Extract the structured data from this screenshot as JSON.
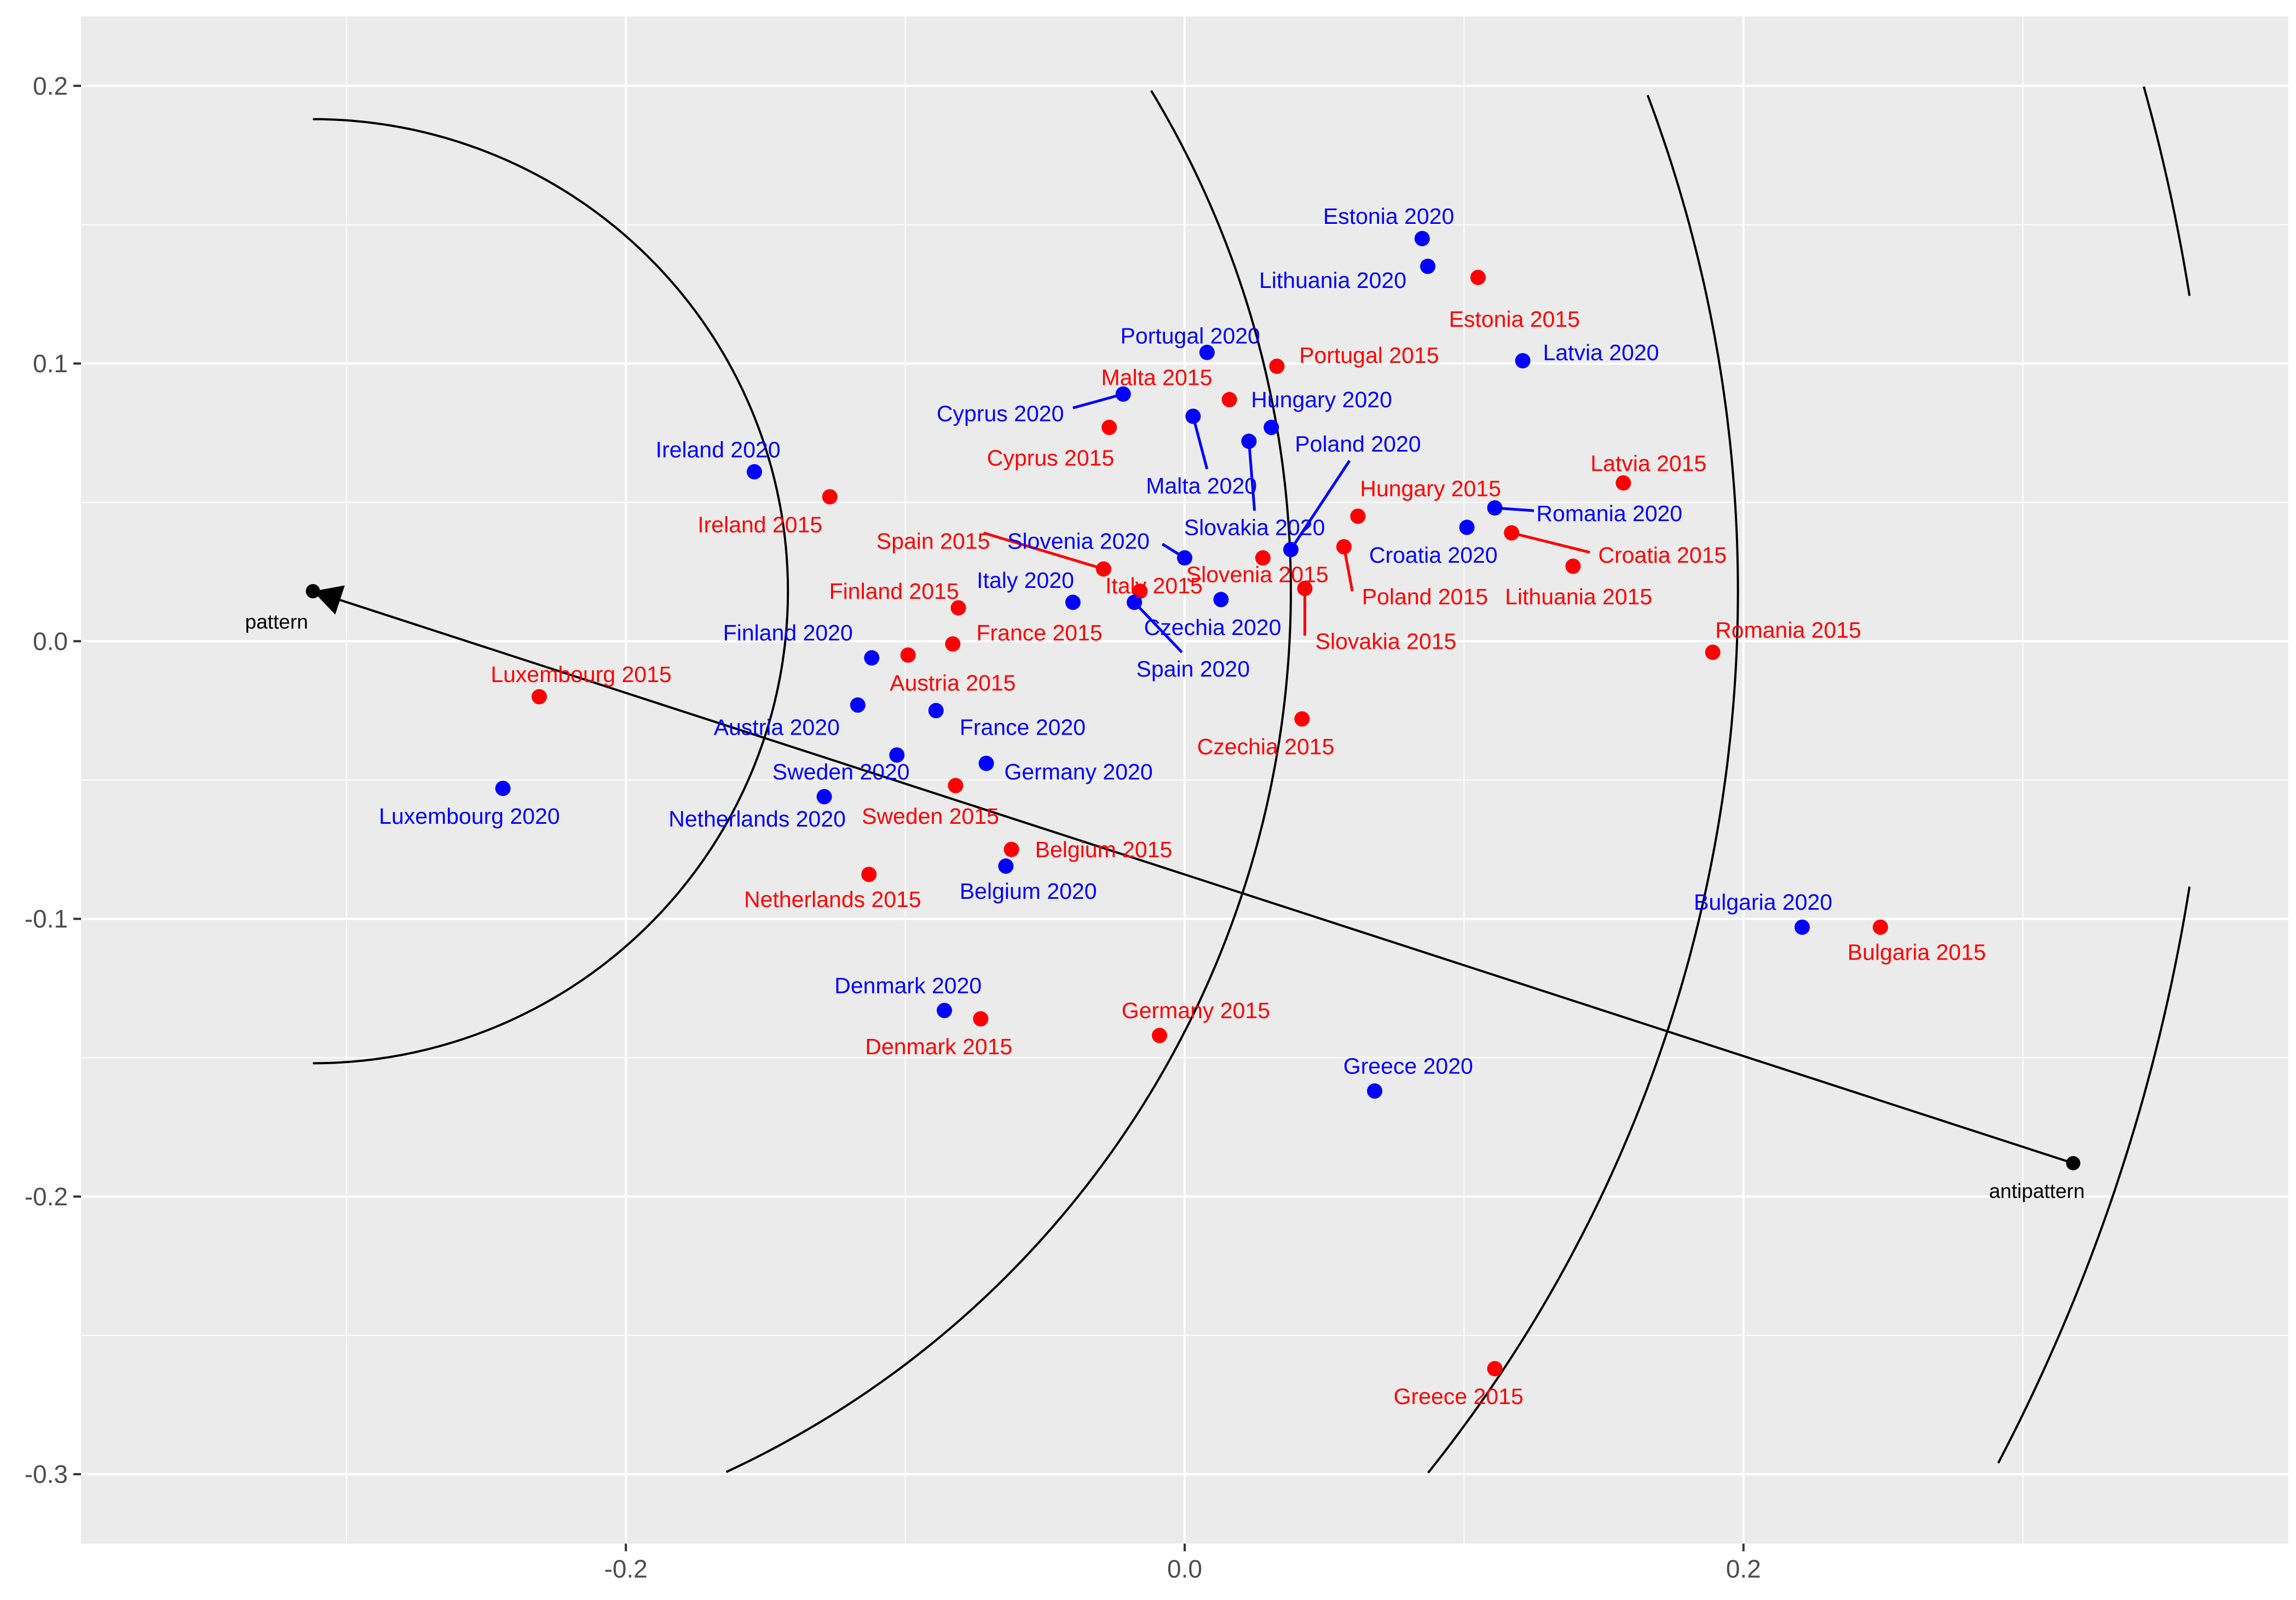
{
  "chart_data": {
    "type": "scatter",
    "title": "",
    "xlabel": "",
    "ylabel": "",
    "xlim": [
      -0.395,
      0.395
    ],
    "ylim": [
      -0.325,
      0.225
    ],
    "x_ticks": [
      -0.2,
      0.0,
      0.2
    ],
    "x_tick_labels": [
      "-0.2",
      "0.0",
      "0.2"
    ],
    "y_ticks": [
      -0.3,
      -0.2,
      -0.1,
      0.0,
      0.1,
      0.2
    ],
    "y_tick_labels": [
      "-0.3",
      "-0.2",
      "-0.1",
      "0.0",
      "0.1",
      "0.2"
    ],
    "grid": true,
    "legend": "none",
    "colors": {
      "panel_background": "#ebebeb",
      "grid_major": "#ffffff",
      "series_2015": "#ff0000",
      "series_2020": "#0000ff",
      "axis_elements": "#000000",
      "tick_text": "#4d4d4d"
    },
    "series": [
      {
        "name": "2015",
        "color": "#ff0000",
        "points": [
          {
            "label": "Estonia 2015",
            "x": 0.105,
            "y": 0.131,
            "lx": 0.118,
            "ly": 0.116
          },
          {
            "label": "Portugal 2015",
            "x": 0.033,
            "y": 0.099,
            "lx": 0.066,
            "ly": 0.103
          },
          {
            "label": "Malta 2015",
            "x": 0.016,
            "y": 0.087,
            "lx": -0.01,
            "ly": 0.095
          },
          {
            "label": "Cyprus 2015",
            "x": -0.027,
            "y": 0.077,
            "lx": -0.048,
            "ly": 0.066
          },
          {
            "label": "Ireland 2015",
            "x": -0.127,
            "y": 0.052,
            "lx": -0.152,
            "ly": 0.042
          },
          {
            "label": "Latvia 2015",
            "x": 0.157,
            "y": 0.057,
            "lx": 0.166,
            "ly": 0.064
          },
          {
            "label": "Hungary 2015",
            "x": 0.062,
            "y": 0.045,
            "lx": 0.088,
            "ly": 0.055
          },
          {
            "label": "Spain 2015",
            "x": -0.029,
            "y": 0.026,
            "lx": -0.09,
            "ly": 0.036,
            "line": [
              -0.072,
              0.039,
              -0.029,
              0.026
            ]
          },
          {
            "label": "Slovenia 2015",
            "x": 0.028,
            "y": 0.03,
            "lx": 0.026,
            "ly": 0.024
          },
          {
            "label": "Italy 2015",
            "x": -0.016,
            "y": 0.018,
            "lx": -0.011,
            "ly": 0.02
          },
          {
            "label": "Finland 2015",
            "x": -0.081,
            "y": 0.012,
            "lx": -0.104,
            "ly": 0.018
          },
          {
            "label": "Croatia 2015",
            "x": 0.117,
            "y": 0.039,
            "lx": 0.171,
            "ly": 0.031,
            "line": [
              0.117,
              0.039,
              0.145,
              0.032
            ]
          },
          {
            "label": "Lithuania 2015",
            "x": 0.139,
            "y": 0.027,
            "lx": 0.141,
            "ly": 0.016
          },
          {
            "label": "Poland 2015",
            "x": 0.057,
            "y": 0.034,
            "lx": 0.086,
            "ly": 0.016,
            "line": [
              0.057,
              0.034,
              0.06,
              0.018
            ]
          },
          {
            "label": "Slovakia 2015",
            "x": 0.043,
            "y": 0.019,
            "lx": 0.072,
            "ly": 0.0,
            "line": [
              0.043,
              0.019,
              0.043,
              0.002
            ]
          },
          {
            "label": "France 2015",
            "x": -0.083,
            "y": -0.001,
            "lx": -0.052,
            "ly": 0.003
          },
          {
            "label": "Romania 2015",
            "x": 0.189,
            "y": -0.004,
            "lx": 0.216,
            "ly": 0.004
          },
          {
            "label": "Austria 2015",
            "x": -0.099,
            "y": -0.005,
            "lx": -0.083,
            "ly": -0.015
          },
          {
            "label": "Luxembourg 2015",
            "x": -0.231,
            "y": -0.02,
            "lx": -0.216,
            "ly": -0.012
          },
          {
            "label": "Czechia 2015",
            "x": 0.042,
            "y": -0.028,
            "lx": 0.029,
            "ly": -0.038
          },
          {
            "label": "Sweden 2015",
            "x": -0.082,
            "y": -0.052,
            "lx": -0.091,
            "ly": -0.063
          },
          {
            "label": "Belgium 2015",
            "x": -0.062,
            "y": -0.075,
            "lx": -0.029,
            "ly": -0.075
          },
          {
            "label": "Netherlands 2015",
            "x": -0.113,
            "y": -0.084,
            "lx": -0.126,
            "ly": -0.093
          },
          {
            "label": "Bulgaria 2015",
            "x": 0.249,
            "y": -0.103,
            "lx": 0.262,
            "ly": -0.112
          },
          {
            "label": "Germany 2015",
            "x": -0.009,
            "y": -0.142,
            "lx": 0.004,
            "ly": -0.133
          },
          {
            "label": "Denmark 2015",
            "x": -0.073,
            "y": -0.136,
            "lx": -0.088,
            "ly": -0.146
          },
          {
            "label": "Greece 2015",
            "x": 0.111,
            "y": -0.262,
            "lx": 0.098,
            "ly": -0.272
          }
        ]
      },
      {
        "name": "2020",
        "color": "#0000ff",
        "points": [
          {
            "label": "Estonia 2020",
            "x": 0.085,
            "y": 0.145,
            "lx": 0.073,
            "ly": 0.153
          },
          {
            "label": "Lithuania 2020",
            "x": 0.087,
            "y": 0.135,
            "lx": 0.053,
            "ly": 0.13
          },
          {
            "label": "Portugal 2020",
            "x": 0.008,
            "y": 0.104,
            "lx": 0.002,
            "ly": 0.11
          },
          {
            "label": "Latvia 2020",
            "x": 0.121,
            "y": 0.101,
            "lx": 0.149,
            "ly": 0.104
          },
          {
            "label": "Cyprus 2020",
            "x": -0.022,
            "y": 0.089,
            "lx": -0.066,
            "ly": 0.082,
            "line": [
              -0.022,
              0.089,
              -0.04,
              0.084
            ]
          },
          {
            "label": "Hungary 2020",
            "x": 0.031,
            "y": 0.077,
            "lx": 0.049,
            "ly": 0.087
          },
          {
            "label": "Malta 2020",
            "x": 0.003,
            "y": 0.081,
            "lx": 0.006,
            "ly": 0.056,
            "line": [
              0.003,
              0.081,
              0.008,
              0.062
            ]
          },
          {
            "label": "Poland 2020",
            "x": 0.038,
            "y": 0.033,
            "lx": 0.062,
            "ly": 0.071,
            "line": [
              0.038,
              0.033,
              0.059,
              0.065
            ]
          },
          {
            "label": "Ireland 2020",
            "x": -0.154,
            "y": 0.061,
            "lx": -0.167,
            "ly": 0.069
          },
          {
            "label": "Slovakia 2020",
            "x": 0.023,
            "y": 0.072,
            "lx": 0.025,
            "ly": 0.041,
            "line": [
              0.023,
              0.072,
              0.025,
              0.047
            ]
          },
          {
            "label": "Romania 2020",
            "x": 0.111,
            "y": 0.048,
            "lx": 0.152,
            "ly": 0.046,
            "line": [
              0.111,
              0.048,
              0.125,
              0.047
            ]
          },
          {
            "label": "Croatia 2020",
            "x": 0.101,
            "y": 0.041,
            "lx": 0.089,
            "ly": 0.031
          },
          {
            "label": "Slovenia 2020",
            "x": 0.0,
            "y": 0.03,
            "lx": -0.038,
            "ly": 0.036,
            "line": [
              -0.008,
              0.035,
              0.0,
              0.03
            ]
          },
          {
            "label": "Italy 2020",
            "x": -0.04,
            "y": 0.014,
            "lx": -0.057,
            "ly": 0.022
          },
          {
            "label": "Czechia 2020",
            "x": 0.013,
            "y": 0.015,
            "lx": 0.01,
            "ly": 0.005
          },
          {
            "label": "Spain 2020",
            "x": -0.018,
            "y": 0.014,
            "lx": 0.003,
            "ly": -0.01,
            "line": [
              -0.018,
              0.014,
              -0.001,
              -0.004
            ]
          },
          {
            "label": "Finland 2020",
            "x": -0.112,
            "y": -0.006,
            "lx": -0.142,
            "ly": 0.003
          },
          {
            "label": "France 2020",
            "x": -0.089,
            "y": -0.025,
            "lx": -0.058,
            "ly": -0.031
          },
          {
            "label": "Austria 2020",
            "x": -0.117,
            "y": -0.023,
            "lx": -0.146,
            "ly": -0.031
          },
          {
            "label": "Sweden 2020",
            "x": -0.103,
            "y": -0.041,
            "lx": -0.123,
            "ly": -0.047
          },
          {
            "label": "Germany 2020",
            "x": -0.071,
            "y": -0.044,
            "lx": -0.038,
            "ly": -0.047
          },
          {
            "label": "Netherlands 2020",
            "x": -0.129,
            "y": -0.056,
            "lx": -0.153,
            "ly": -0.064
          },
          {
            "label": "Luxembourg 2020",
            "x": -0.244,
            "y": -0.053,
            "lx": -0.256,
            "ly": -0.063
          },
          {
            "label": "Belgium 2020",
            "x": -0.064,
            "y": -0.081,
            "lx": -0.056,
            "ly": -0.09
          },
          {
            "label": "Bulgaria 2020",
            "x": 0.221,
            "y": -0.103,
            "lx": 0.207,
            "ly": -0.094
          },
          {
            "label": "Denmark 2020",
            "x": -0.086,
            "y": -0.133,
            "lx": -0.099,
            "ly": -0.124
          },
          {
            "label": "Greece 2020",
            "x": 0.068,
            "y": -0.162,
            "lx": 0.08,
            "ly": -0.153
          }
        ]
      }
    ],
    "anchors": [
      {
        "label": "pattern",
        "x": -0.312,
        "y": 0.018,
        "lx": -0.325,
        "ly": 0.007
      },
      {
        "label": "antipattern",
        "x": 0.318,
        "y": -0.188,
        "lx": 0.305,
        "ly": -0.198
      }
    ],
    "arrow": {
      "from": [
        0.318,
        -0.188
      ],
      "to": [
        -0.312,
        0.018
      ]
    },
    "circles": {
      "center": [
        -0.312,
        0.018
      ],
      "radii": [
        0.17,
        0.35,
        0.51,
        0.68
      ],
      "x_max": [
        0.36,
        0.37,
        0.368,
        0.36
      ],
      "y_max": [
        0.2,
        0.2,
        0.2,
        0.2
      ],
      "y_min": [
        -0.3,
        -0.3,
        -0.3,
        -0.3
      ]
    }
  }
}
